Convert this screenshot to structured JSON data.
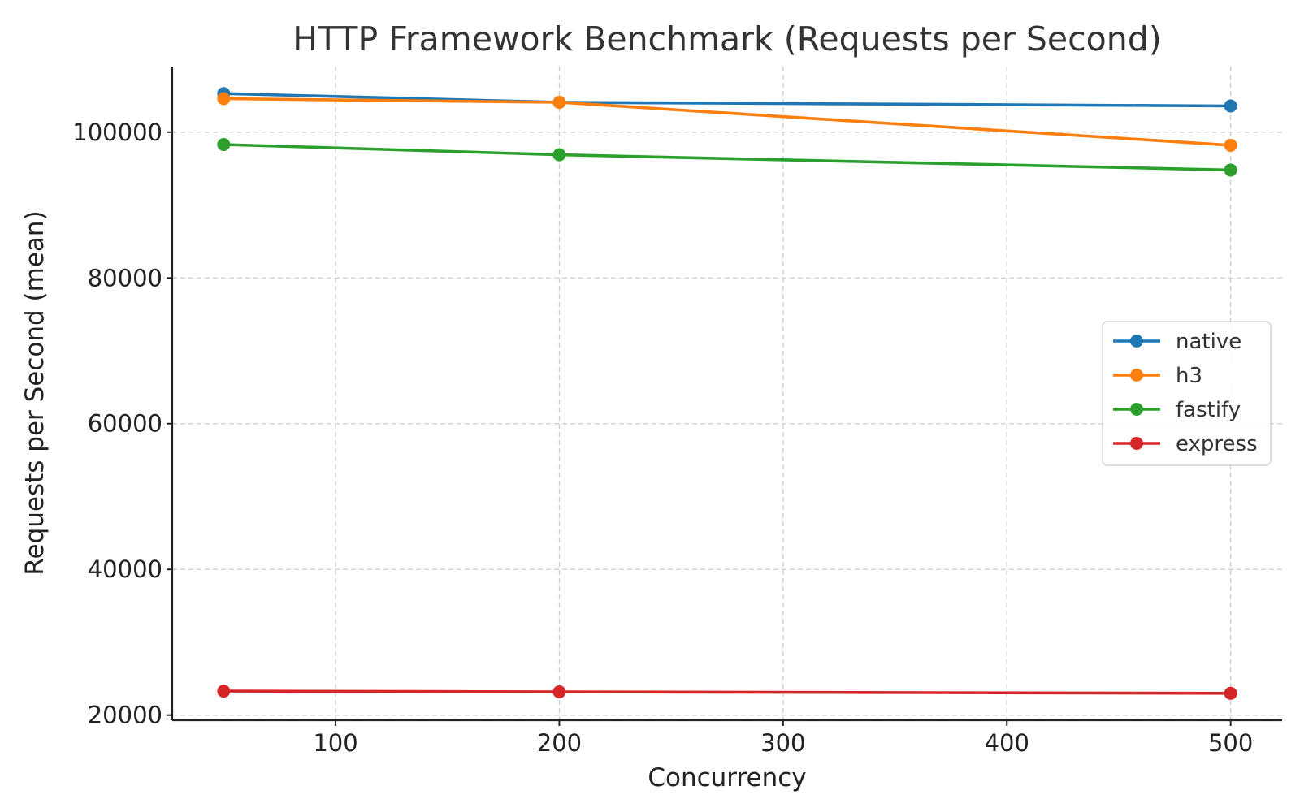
{
  "chart_data": {
    "type": "line",
    "title": "HTTP Framework Benchmark (Requests per Second)",
    "xlabel": "Concurrency",
    "ylabel": "Requests per Second (mean)",
    "x": [
      50,
      200,
      500
    ],
    "xlim": [
      27,
      523
    ],
    "ylim": [
      19300,
      109000
    ],
    "xticks": [
      100,
      200,
      300,
      400,
      500
    ],
    "yticks": [
      20000,
      40000,
      60000,
      80000,
      100000
    ],
    "grid": true,
    "legend_position": "center-right",
    "series": [
      {
        "name": "native",
        "color": "#1f77b4",
        "values": [
          105300,
          104100,
          103600
        ]
      },
      {
        "name": "h3",
        "color": "#ff7f0e",
        "values": [
          104600,
          104100,
          98200
        ]
      },
      {
        "name": "fastify",
        "color": "#2ca02c",
        "values": [
          98300,
          96900,
          94800
        ]
      },
      {
        "name": "express",
        "color": "#d62728",
        "values": [
          23300,
          23200,
          23000
        ]
      }
    ]
  }
}
